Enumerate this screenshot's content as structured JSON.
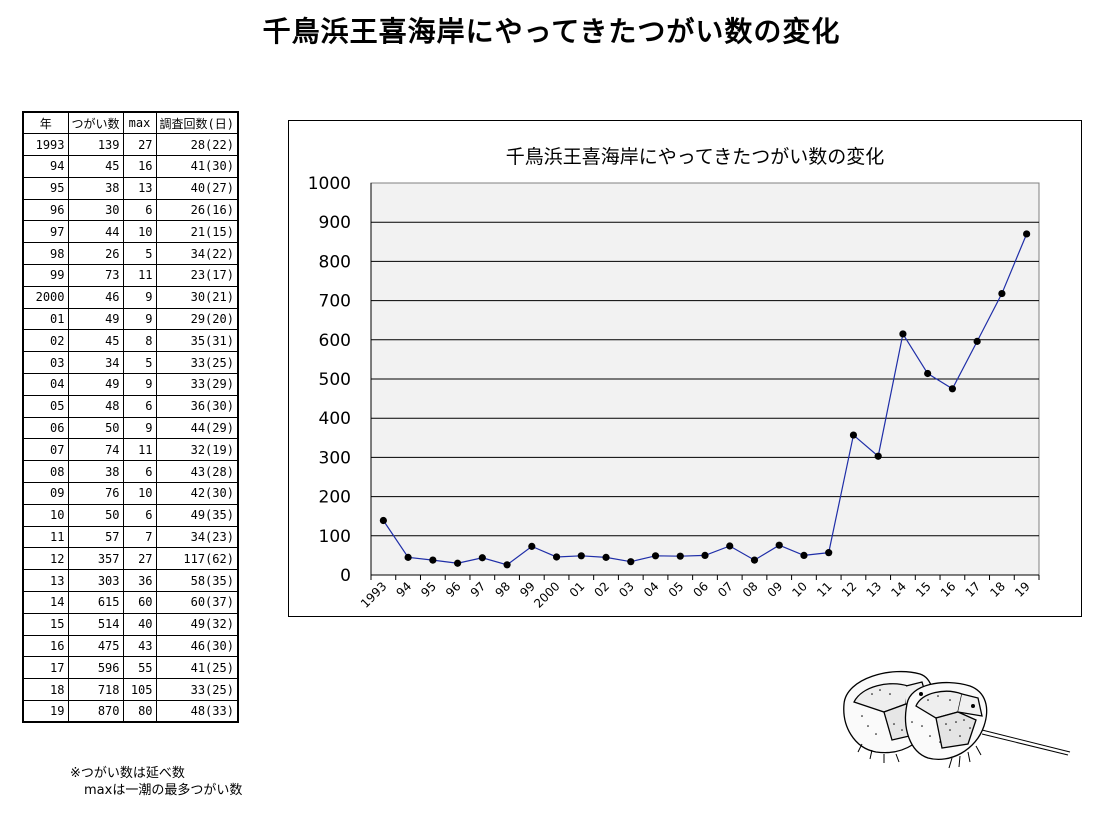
{
  "page": {
    "title": "千鳥浜王喜海岸にやってきたつがい数の変化"
  },
  "table": {
    "headers": [
      "年",
      "つがい数",
      "max",
      "調査回数(日)"
    ],
    "rows": [
      [
        "1993",
        "139",
        "27",
        "28(22)"
      ],
      [
        "94",
        "45",
        "16",
        "41(30)"
      ],
      [
        "95",
        "38",
        "13",
        "40(27)"
      ],
      [
        "96",
        "30",
        "6",
        "26(16)"
      ],
      [
        "97",
        "44",
        "10",
        "21(15)"
      ],
      [
        "98",
        "26",
        "5",
        "34(22)"
      ],
      [
        "99",
        "73",
        "11",
        "23(17)"
      ],
      [
        "2000",
        "46",
        "9",
        "30(21)"
      ],
      [
        "01",
        "49",
        "9",
        "29(20)"
      ],
      [
        "02",
        "45",
        "8",
        "35(31)"
      ],
      [
        "03",
        "34",
        "5",
        "33(25)"
      ],
      [
        "04",
        "49",
        "9",
        "33(29)"
      ],
      [
        "05",
        "48",
        "6",
        "36(30)"
      ],
      [
        "06",
        "50",
        "9",
        "44(29)"
      ],
      [
        "07",
        "74",
        "11",
        "32(19)"
      ],
      [
        "08",
        "38",
        "6",
        "43(28)"
      ],
      [
        "09",
        "76",
        "10",
        "42(30)"
      ],
      [
        "10",
        "50",
        "6",
        "49(35)"
      ],
      [
        "11",
        "57",
        "7",
        "34(23)"
      ],
      [
        "12",
        "357",
        "27",
        "117(62)"
      ],
      [
        "13",
        "303",
        "36",
        "58(35)"
      ],
      [
        "14",
        "615",
        "60",
        "60(37)"
      ],
      [
        "15",
        "514",
        "40",
        "49(32)"
      ],
      [
        "16",
        "475",
        "43",
        "46(30)"
      ],
      [
        "17",
        "596",
        "55",
        "41(25)"
      ],
      [
        "18",
        "718",
        "105",
        "33(25)"
      ],
      [
        "19",
        "870",
        "80",
        "48(33)"
      ]
    ]
  },
  "notes": [
    "※つがい数は延べ数",
    "maxは一潮の最多つがい数"
  ],
  "illustration": {
    "icon": "horseshoe-crab-pair-icon"
  },
  "chart_data": {
    "type": "line",
    "title": "千鳥浜王喜海岸にやってきたつがい数の変化",
    "xlabel": "",
    "ylabel": "",
    "categories": [
      "1993",
      "94",
      "95",
      "96",
      "97",
      "98",
      "99",
      "2000",
      "01",
      "02",
      "03",
      "04",
      "05",
      "06",
      "07",
      "08",
      "09",
      "10",
      "11",
      "12",
      "13",
      "14",
      "15",
      "16",
      "17",
      "18",
      "19"
    ],
    "series": [
      {
        "values": [
          139,
          45,
          38,
          30,
          44,
          26,
          73,
          46,
          49,
          45,
          34,
          49,
          48,
          50,
          74,
          38,
          76,
          50,
          57,
          357,
          303,
          615,
          514,
          475,
          596,
          718,
          870
        ]
      }
    ],
    "ylim": [
      0,
      1000
    ],
    "yticks": [
      "0",
      "100",
      "200",
      "300",
      "400",
      "500",
      "600",
      "700",
      "800",
      "900",
      "1000"
    ],
    "grid": true,
    "legend": "none",
    "colors": {
      "line": "#1f2ea8",
      "marker": "#000000",
      "plot_bg": "#f2f2f2"
    }
  }
}
